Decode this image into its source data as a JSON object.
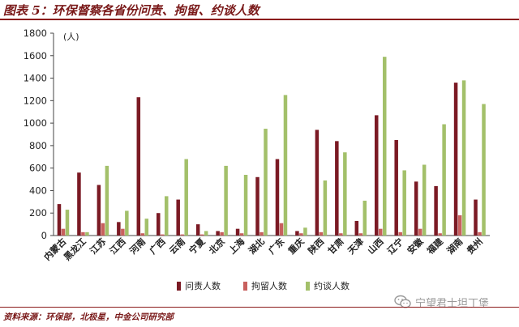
{
  "header": {
    "title": "图表 5：环保督察各省份问责、拘留、约谈人数"
  },
  "footer": {
    "source": "资料来源：环保部，北极星，中金公司研究部"
  },
  "watermark": {
    "text": "宁望君士坦丁堡",
    "icon": "wechat-icon"
  },
  "colors": {
    "series1": "#7b1a24",
    "series2": "#c8605e",
    "series3": "#a3c06a",
    "axis": "#444444"
  },
  "chart_data": {
    "type": "bar",
    "unit_label": "(人)",
    "ylim": [
      0,
      1800
    ],
    "yticks": [
      0,
      200,
      400,
      600,
      800,
      1000,
      1200,
      1400,
      1600,
      1800
    ],
    "grid": false,
    "legend_position": "bottom",
    "categories": [
      "内蒙古",
      "黑龙江",
      "江苏",
      "江西",
      "河南",
      "广西",
      "云南",
      "宁夏",
      "北京",
      "上海",
      "湖北",
      "广东",
      "重庆",
      "陕西",
      "甘肃",
      "天津",
      "山西",
      "辽宁",
      "安徽",
      "福建",
      "湖南",
      "贵州"
    ],
    "series": [
      {
        "name": "问责人数",
        "values": [
          280,
          560,
          450,
          120,
          1230,
          200,
          320,
          100,
          40,
          60,
          520,
          680,
          40,
          940,
          840,
          130,
          1070,
          850,
          480,
          440,
          1360,
          320
        ]
      },
      {
        "name": "拘留人数",
        "values": [
          60,
          30,
          110,
          60,
          20,
          10,
          10,
          10,
          30,
          20,
          30,
          110,
          20,
          30,
          20,
          20,
          60,
          30,
          60,
          20,
          180,
          30
        ]
      },
      {
        "name": "约谈人数",
        "values": [
          230,
          30,
          620,
          220,
          150,
          350,
          680,
          40,
          620,
          540,
          950,
          1250,
          70,
          490,
          740,
          310,
          1590,
          580,
          630,
          990,
          1380,
          1170
        ]
      }
    ]
  }
}
